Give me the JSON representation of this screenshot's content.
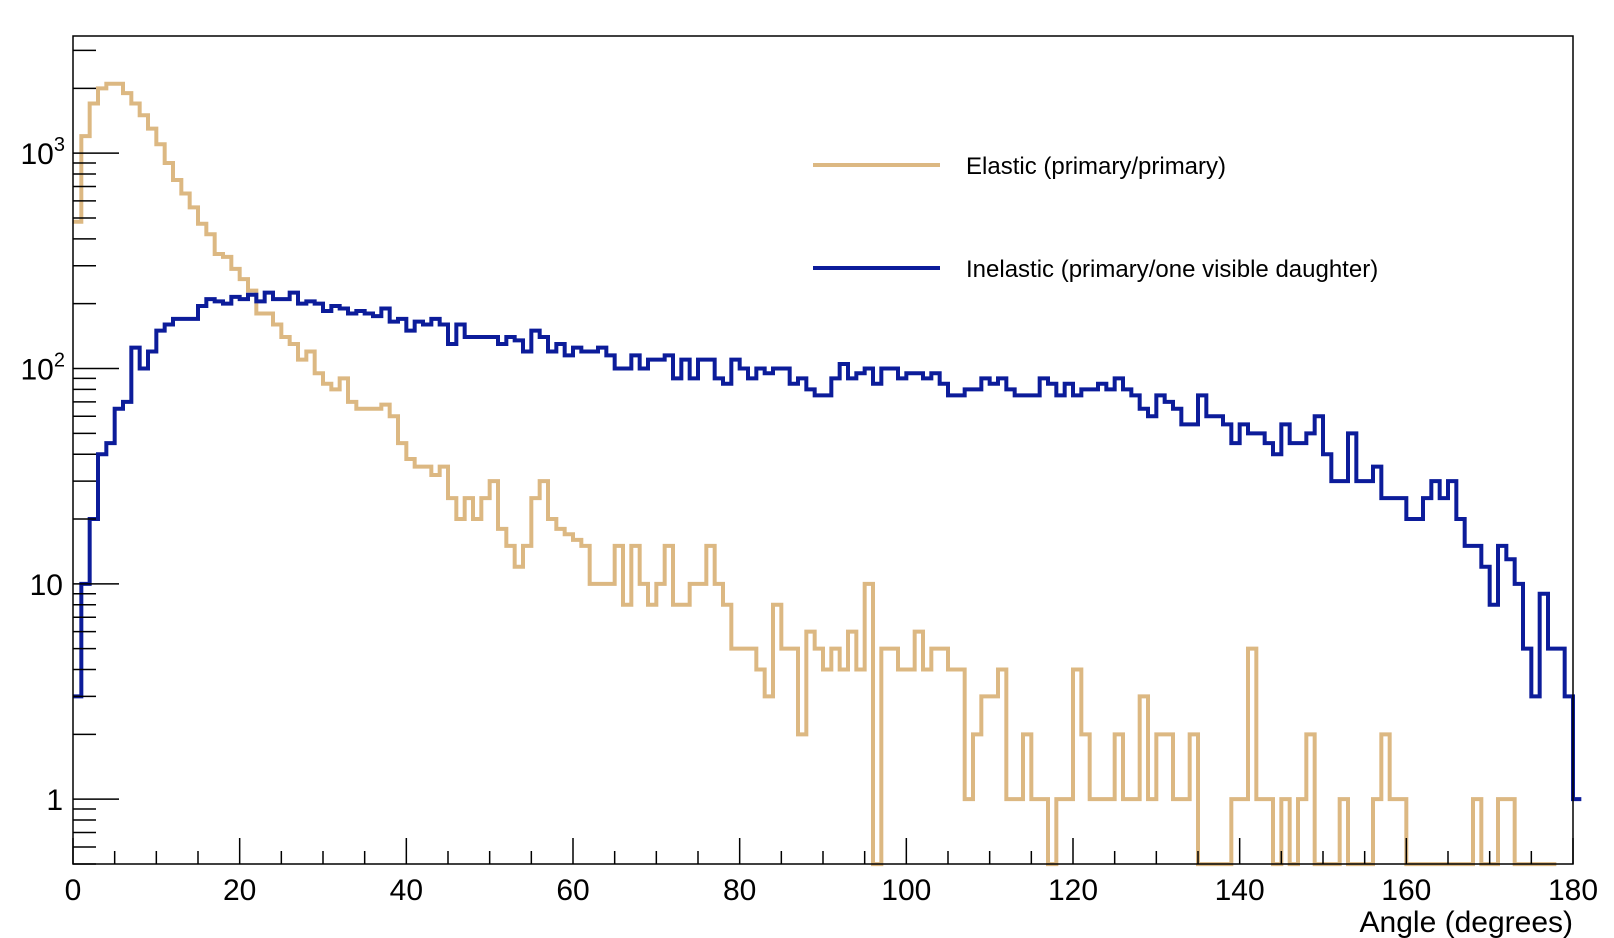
{
  "chart_data": {
    "type": "line",
    "title": "",
    "xlabel": "Angle (degrees)",
    "ylabel": "",
    "xlim": [
      0,
      180
    ],
    "ylim": [
      0.5,
      3500
    ],
    "yscale": "log",
    "grid": false,
    "legend_position": "top-right",
    "bin_width": 1,
    "x_ticks": [
      0,
      20,
      40,
      60,
      80,
      100,
      120,
      140,
      160,
      180
    ],
    "x_tick_labels": [
      "0",
      "20",
      "40",
      "60",
      "80",
      "100",
      "120",
      "140",
      "160",
      "180"
    ],
    "y_ticks": [
      1,
      10,
      100,
      1000
    ],
    "y_tick_labels": [
      {
        "base": "1",
        "exp": ""
      },
      {
        "base": "10",
        "exp": ""
      },
      {
        "base": "10",
        "exp": "2"
      },
      {
        "base": "10",
        "exp": "3"
      }
    ],
    "series": [
      {
        "name": "Elastic (primary/primary)",
        "color": "#dcb882",
        "values": [
          480,
          1200,
          1700,
          2000,
          2100,
          2100,
          1900,
          1700,
          1500,
          1300,
          1100,
          900,
          750,
          650,
          560,
          470,
          420,
          340,
          330,
          290,
          260,
          230,
          180,
          180,
          160,
          140,
          130,
          110,
          120,
          95,
          85,
          80,
          90,
          70,
          65,
          65,
          65,
          68,
          60,
          45,
          38,
          35,
          35,
          32,
          35,
          25,
          20,
          25,
          20,
          25,
          30,
          18,
          15,
          12,
          15,
          25,
          30,
          20,
          18,
          17,
          16,
          15,
          10,
          10,
          10,
          15,
          8,
          15,
          10,
          8,
          10,
          15,
          8,
          8,
          10,
          10,
          15,
          10,
          8,
          5,
          5,
          5,
          4,
          3,
          8,
          5,
          5,
          2,
          6,
          5,
          4,
          5,
          4,
          6,
          4,
          10,
          0.4,
          5,
          5,
          4,
          4,
          6,
          4,
          5,
          5,
          4,
          4,
          1,
          2,
          3,
          3,
          4,
          1,
          1,
          2,
          1,
          1,
          0.4,
          1,
          1,
          4,
          2,
          1,
          1,
          1,
          2,
          1,
          1,
          3,
          1,
          2,
          2,
          1,
          1,
          2,
          0.4,
          0.4,
          0.4,
          0.4,
          1,
          1,
          5,
          1,
          1,
          0.4,
          1,
          0.4,
          1,
          2,
          0.4,
          0.4,
          0.4,
          1,
          0.4,
          0.4,
          0.4,
          1,
          2,
          1,
          1,
          0.4,
          0.4,
          0.4,
          0.4,
          0.4,
          0.4,
          0.4,
          0.4,
          1,
          0.4,
          0.4,
          1,
          1,
          0.4,
          0.4,
          0.4,
          0.4,
          0.4
        ]
      },
      {
        "name": "Inelastic (primary/one visible daughter)",
        "color": "#0c1c9a",
        "values": [
          3,
          10,
          20,
          40,
          45,
          65,
          70,
          125,
          100,
          120,
          150,
          160,
          170,
          170,
          170,
          195,
          210,
          205,
          200,
          215,
          210,
          220,
          205,
          225,
          210,
          210,
          225,
          200,
          205,
          200,
          185,
          195,
          190,
          180,
          185,
          180,
          175,
          190,
          165,
          170,
          150,
          165,
          160,
          170,
          160,
          130,
          160,
          140,
          140,
          140,
          140,
          130,
          140,
          135,
          120,
          150,
          140,
          120,
          130,
          115,
          125,
          120,
          120,
          125,
          115,
          100,
          100,
          115,
          100,
          110,
          110,
          115,
          90,
          110,
          90,
          110,
          110,
          90,
          85,
          110,
          100,
          90,
          100,
          95,
          100,
          100,
          85,
          90,
          80,
          75,
          75,
          90,
          105,
          90,
          95,
          100,
          85,
          100,
          100,
          90,
          95,
          95,
          90,
          95,
          85,
          75,
          75,
          80,
          80,
          90,
          85,
          90,
          80,
          75,
          75,
          75,
          90,
          85,
          75,
          85,
          75,
          80,
          80,
          85,
          80,
          90,
          80,
          75,
          65,
          60,
          75,
          70,
          65,
          55,
          55,
          75,
          60,
          60,
          55,
          45,
          55,
          50,
          50,
          45,
          40,
          55,
          45,
          45,
          50,
          60,
          40,
          30,
          30,
          50,
          30,
          30,
          35,
          25,
          25,
          25,
          20,
          20,
          25,
          30,
          25,
          30,
          20,
          15,
          15,
          12,
          8,
          15,
          13,
          10,
          5,
          3,
          9,
          5,
          5,
          3,
          1
        ]
      }
    ]
  }
}
